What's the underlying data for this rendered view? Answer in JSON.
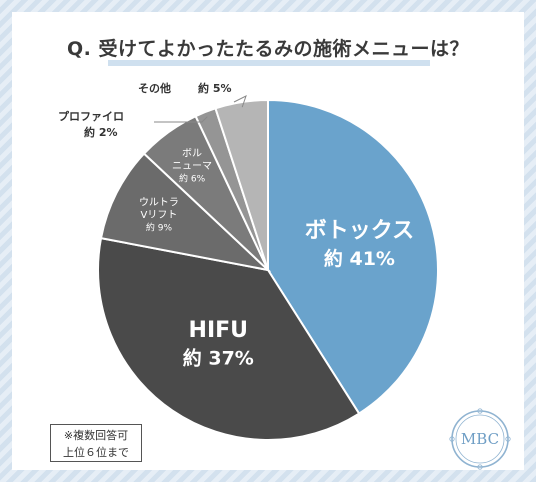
{
  "title": "Q. 受けてよかったたるみの施術メニューは？",
  "note": [
    "※複数回答可",
    "上位６位まで"
  ],
  "logo_text": "MBC",
  "colors": {
    "botox": "#6aa3cc",
    "hifu": "#4a4a4a",
    "ultra": "#6b6b6b",
    "volnewmer": "#7b7b7b",
    "profhilo": "#959595",
    "other": "#b5b5b5"
  },
  "chart_data": {
    "type": "pie",
    "title": "Q. 受けてよかったたるみの施術メニューは？",
    "start_angle_deg": 0,
    "direction": "clockwise",
    "slices": [
      {
        "id": "botox",
        "label_lines": [
          "ボトックス"
        ],
        "pct_text": "約 41%",
        "value": 41
      },
      {
        "id": "hifu",
        "label_lines": [
          "HIFU"
        ],
        "pct_text": "約 37%",
        "value": 37
      },
      {
        "id": "ultra",
        "label_lines": [
          "ウルトラ",
          "Vリフト"
        ],
        "pct_text": "約 9%",
        "value": 9
      },
      {
        "id": "volnewmer",
        "label_lines": [
          "ボル",
          "ニューマ"
        ],
        "pct_text": "約 6%",
        "value": 6
      },
      {
        "id": "profhilo",
        "label_lines": [
          "プロファイロ"
        ],
        "pct_text": "約 2%",
        "value": 2
      },
      {
        "id": "other",
        "label_lines": [
          "その他"
        ],
        "pct_text": "約 5%",
        "value": 5
      }
    ]
  }
}
